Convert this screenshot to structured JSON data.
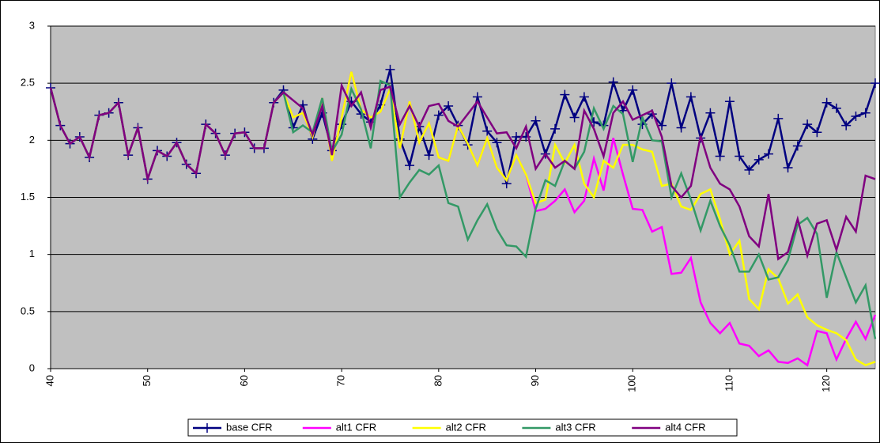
{
  "chart_data": {
    "type": "line",
    "x": [
      40,
      41,
      42,
      43,
      44,
      45,
      46,
      47,
      48,
      49,
      50,
      51,
      52,
      53,
      54,
      55,
      56,
      57,
      58,
      59,
      60,
      61,
      62,
      63,
      64,
      65,
      66,
      67,
      68,
      69,
      70,
      71,
      72,
      73,
      74,
      75,
      76,
      77,
      78,
      79,
      80,
      81,
      82,
      83,
      84,
      85,
      86,
      87,
      88,
      89,
      90,
      91,
      92,
      93,
      94,
      95,
      96,
      97,
      98,
      99,
      100,
      101,
      102,
      103,
      104,
      105,
      106,
      107,
      108,
      109,
      110,
      111,
      112,
      113,
      114,
      115,
      116,
      117,
      118,
      119,
      120,
      121,
      122,
      123,
      124,
      125
    ],
    "xlim": [
      40,
      125
    ],
    "xticks": [
      40,
      50,
      60,
      70,
      80,
      90,
      100,
      110,
      120
    ],
    "ylim": [
      0,
      3
    ],
    "yticks": [
      0,
      0.5,
      1,
      1.5,
      2,
      2.5,
      3
    ],
    "grid": true,
    "legend": "bottom",
    "series": [
      {
        "name": "base CFR",
        "color": "#000080",
        "marker": "plus",
        "values": [
          2.46,
          2.13,
          1.97,
          2.03,
          1.85,
          2.22,
          2.24,
          2.33,
          1.87,
          2.11,
          1.66,
          1.91,
          1.86,
          1.98,
          1.79,
          1.71,
          2.14,
          2.06,
          1.87,
          2.06,
          2.07,
          1.93,
          1.93,
          2.33,
          2.44,
          2.11,
          2.31,
          2.01,
          2.24,
          1.91,
          2.14,
          2.34,
          2.23,
          2.16,
          2.31,
          2.62,
          2.01,
          1.78,
          2.12,
          1.87,
          2.22,
          2.3,
          2.13,
          1.96,
          2.38,
          2.08,
          1.98,
          1.62,
          2.03,
          2.03,
          2.17,
          1.88,
          2.1,
          2.4,
          2.2,
          2.38,
          2.16,
          2.13,
          2.51,
          2.26,
          2.44,
          2.14,
          2.23,
          2.13,
          2.5,
          2.11,
          2.38,
          2.02,
          2.24,
          1.86,
          2.34,
          1.86,
          1.74,
          1.83,
          1.88,
          2.19,
          1.76,
          1.95,
          2.14,
          2.07,
          2.33,
          2.28,
          2.13,
          2.21,
          2.24,
          2.5
        ]
      },
      {
        "name": "alt1 CFR",
        "color": "#ff00ff",
        "values": [
          2.46,
          2.13,
          1.97,
          2.03,
          1.85,
          2.22,
          2.24,
          2.33,
          1.87,
          2.11,
          1.66,
          1.91,
          1.86,
          1.98,
          1.79,
          1.71,
          2.14,
          2.06,
          1.87,
          2.06,
          2.07,
          1.93,
          1.93,
          2.33,
          2.42,
          2.2,
          2.24,
          2.03,
          2.37,
          1.82,
          2.2,
          2.6,
          2.27,
          2.2,
          2.25,
          2.45,
          1.93,
          2.34,
          1.98,
          2.15,
          1.85,
          1.82,
          2.13,
          1.97,
          1.78,
          2.02,
          1.76,
          1.65,
          1.87,
          1.7,
          1.38,
          1.4,
          1.47,
          1.57,
          1.37,
          1.47,
          1.84,
          1.56,
          2.02,
          1.7,
          1.4,
          1.39,
          1.2,
          1.24,
          0.83,
          0.84,
          0.97,
          0.58,
          0.4,
          0.31,
          0.4,
          0.22,
          0.2,
          0.11,
          0.16,
          0.06,
          0.05,
          0.09,
          0.03,
          0.33,
          0.31,
          0.08,
          0.26,
          0.41,
          0.26,
          0.47
        ]
      },
      {
        "name": "alt2 CFR",
        "color": "#ffff00",
        "values": [
          2.46,
          2.13,
          1.97,
          2.03,
          1.85,
          2.22,
          2.24,
          2.33,
          1.87,
          2.11,
          1.66,
          1.91,
          1.86,
          1.98,
          1.79,
          1.71,
          2.14,
          2.06,
          1.87,
          2.06,
          2.07,
          1.93,
          1.93,
          2.33,
          2.42,
          2.2,
          2.24,
          2.03,
          2.37,
          1.82,
          2.2,
          2.6,
          2.27,
          2.2,
          2.25,
          2.45,
          1.93,
          2.34,
          1.98,
          2.15,
          1.85,
          1.82,
          2.13,
          1.97,
          1.78,
          2.02,
          1.76,
          1.65,
          1.87,
          1.7,
          1.45,
          1.48,
          1.96,
          1.8,
          1.96,
          1.62,
          1.5,
          1.82,
          1.76,
          1.96,
          1.96,
          1.92,
          1.9,
          1.6,
          1.62,
          1.42,
          1.39,
          1.53,
          1.57,
          1.31,
          1.0,
          1.12,
          0.61,
          0.52,
          0.87,
          0.79,
          0.57,
          0.65,
          0.45,
          0.38,
          0.34,
          0.31,
          0.25,
          0.08,
          0.03,
          0.06
        ]
      },
      {
        "name": "alt3 CFR",
        "color": "#339966",
        "values": [
          2.46,
          2.13,
          1.97,
          2.03,
          1.85,
          2.22,
          2.24,
          2.33,
          1.87,
          2.11,
          1.66,
          1.91,
          1.86,
          1.98,
          1.79,
          1.71,
          2.14,
          2.06,
          1.87,
          2.06,
          2.07,
          1.93,
          1.93,
          2.33,
          2.42,
          2.07,
          2.13,
          2.07,
          2.37,
          1.9,
          2.05,
          2.45,
          2.27,
          1.93,
          2.52,
          2.48,
          1.5,
          1.63,
          1.74,
          1.7,
          1.78,
          1.45,
          1.42,
          1.13,
          1.3,
          1.44,
          1.22,
          1.08,
          1.07,
          0.98,
          1.4,
          1.65,
          1.6,
          1.82,
          1.75,
          1.9,
          2.28,
          2.1,
          2.3,
          2.23,
          1.81,
          2.2,
          2.0,
          1.99,
          1.5,
          1.71,
          1.48,
          1.21,
          1.47,
          1.25,
          1.08,
          0.85,
          0.85,
          1.0,
          0.78,
          0.8,
          0.95,
          1.26,
          1.32,
          1.18,
          0.62,
          1.02,
          0.8,
          0.58,
          0.73,
          0.26
        ]
      },
      {
        "name": "alt4 CFR",
        "color": "#800080",
        "values": [
          2.46,
          2.13,
          1.97,
          2.03,
          1.85,
          2.22,
          2.24,
          2.33,
          1.87,
          2.11,
          1.66,
          1.91,
          1.86,
          1.98,
          1.79,
          1.71,
          2.14,
          2.06,
          1.87,
          2.06,
          2.07,
          1.93,
          1.93,
          2.33,
          2.42,
          2.35,
          2.28,
          2.05,
          2.3,
          1.87,
          2.48,
          2.3,
          2.42,
          2.11,
          2.44,
          2.47,
          2.14,
          2.3,
          2.12,
          2.3,
          2.32,
          2.17,
          2.12,
          2.23,
          2.34,
          2.2,
          2.06,
          2.07,
          1.93,
          2.12,
          1.75,
          1.88,
          1.76,
          1.82,
          1.75,
          2.26,
          2.1,
          1.86,
          2.24,
          2.34,
          2.18,
          2.22,
          2.26,
          2.03,
          1.6,
          1.5,
          1.6,
          2.04,
          1.76,
          1.62,
          1.57,
          1.42,
          1.16,
          1.07,
          1.53,
          0.96,
          1.02,
          1.31,
          0.99,
          1.27,
          1.3,
          1.04,
          1.33,
          1.2,
          1.69,
          1.66
        ]
      }
    ]
  }
}
